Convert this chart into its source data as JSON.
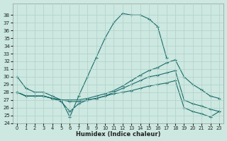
{
  "xlabel": "Humidex (Indice chaleur)",
  "bg_color": "#cce8e0",
  "line_color": "#1a6b6b",
  "grid_color": "#b0d0c8",
  "xlim": [
    -0.5,
    23.5
  ],
  "ylim": [
    24,
    39
  ],
  "xticks": [
    0,
    1,
    2,
    3,
    4,
    5,
    6,
    7,
    8,
    9,
    10,
    11,
    12,
    13,
    14,
    15,
    16,
    17,
    18,
    19,
    20,
    21,
    22,
    23
  ],
  "yticks": [
    24,
    25,
    26,
    27,
    28,
    29,
    30,
    31,
    32,
    33,
    34,
    35,
    36,
    37,
    38
  ],
  "curve1_x": [
    0,
    1,
    2,
    3,
    4,
    5,
    6,
    7,
    8,
    9,
    10,
    11,
    12,
    13,
    14,
    15,
    16,
    17
  ],
  "curve1_y": [
    30,
    28.5,
    28,
    28,
    27.5,
    27,
    24.8,
    27.5,
    30,
    32.5,
    35,
    37,
    38.2,
    38,
    38,
    37.5,
    36.5,
    32.5
  ],
  "curve2_x": [
    0,
    1,
    2,
    3,
    4,
    5,
    6,
    7,
    8,
    9,
    10,
    11,
    12,
    13,
    14,
    15,
    16,
    17,
    18,
    19,
    20,
    21,
    22,
    23
  ],
  "curve2_y": [
    28,
    27.5,
    27.5,
    27.5,
    27.2,
    27,
    27,
    27,
    27.2,
    27.5,
    27.8,
    28.2,
    28.8,
    29.5,
    30.2,
    30.8,
    31.2,
    31.8,
    32.2,
    30,
    29,
    28.3,
    27.5,
    27.2
  ],
  "curve3_x": [
    0,
    1,
    2,
    3,
    4,
    5,
    6,
    7,
    8,
    9,
    10,
    11,
    12,
    13,
    14,
    15,
    16,
    17,
    18,
    19,
    20,
    21,
    22,
    23
  ],
  "curve3_y": [
    28,
    27.5,
    27.5,
    27.5,
    27.2,
    27,
    26.8,
    26.8,
    27,
    27.2,
    27.5,
    28,
    28.5,
    29,
    29.5,
    30,
    30.2,
    30.5,
    30.8,
    27,
    26.5,
    26.2,
    25.8,
    25.5
  ],
  "curve4_x": [
    0,
    1,
    2,
    3,
    4,
    5,
    6,
    7,
    8,
    9,
    10,
    11,
    12,
    13,
    14,
    15,
    16,
    17,
    18,
    19,
    20,
    21,
    22,
    23
  ],
  "curve4_y": [
    28,
    27.5,
    27.5,
    27.5,
    27.2,
    26.8,
    25.5,
    26.5,
    27,
    27.2,
    27.5,
    27.8,
    28,
    28.2,
    28.5,
    28.8,
    29,
    29.2,
    29.5,
    26,
    25.5,
    25.2,
    24.8,
    25.5
  ]
}
